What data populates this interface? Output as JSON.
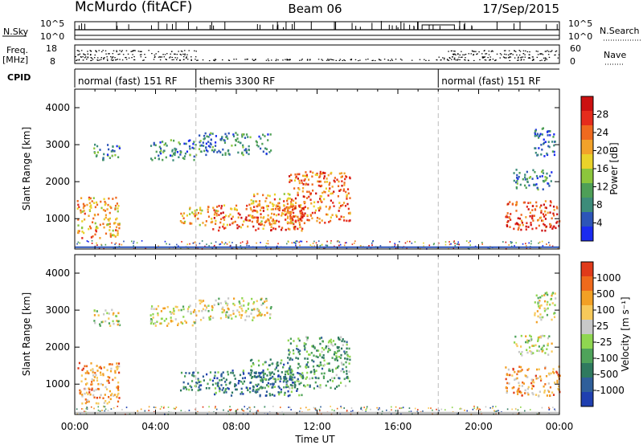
{
  "header": {
    "title": "McMurdo (fitACF)",
    "beam": "Beam 06",
    "date": "17/Sep/2015"
  },
  "status": {
    "nsky_label": "N.Sky",
    "nsky_ticks": [
      "10^5",
      "10^0"
    ],
    "nsearch_label": "N.Search",
    "freq_label_1": "Freq.",
    "freq_label_2": "[MHz]",
    "freq_ticks": [
      "18",
      "8"
    ],
    "nave_label": "Nave",
    "nave_ticks": [
      "60",
      "0"
    ],
    "cpid_label": "CPID",
    "cpid_segments": [
      {
        "label": "normal (fast) 151 RF",
        "start": 0,
        "end": 6
      },
      {
        "label": "themis 3300 RF",
        "start": 6,
        "end": 18
      },
      {
        "label": "normal (fast) 151 RF",
        "start": 18,
        "end": 24
      }
    ]
  },
  "chart_data": [
    {
      "type": "heatmap",
      "name": "power",
      "ylabel": "Slant Range [km]",
      "xlim": [
        0,
        24
      ],
      "ylim": [
        180,
        4500
      ],
      "yticks": [
        "1000",
        "2000",
        "3000",
        "4000"
      ],
      "colorbar": {
        "label": "Power [dB]",
        "ticks": [
          "4",
          "8",
          "12",
          "16",
          "20",
          "24",
          "28"
        ],
        "colors": [
          "#1a2bf0",
          "#2d55b8",
          "#3d8c7a",
          "#4e9f57",
          "#8cc63c",
          "#e9d22a",
          "#f2a22a",
          "#ef6a1f",
          "#e52c1c",
          "#cc1010"
        ]
      },
      "echo_regions": [
        {
          "t0": 0.1,
          "t1": 2.2,
          "r0": 500,
          "r1": 1600,
          "level": 6
        },
        {
          "t0": 0.9,
          "t1": 2.2,
          "r0": 2600,
          "r1": 3050,
          "level": 2
        },
        {
          "t0": 3.7,
          "t1": 6.0,
          "r0": 2600,
          "r1": 3150,
          "level": 2
        },
        {
          "t0": 5.2,
          "t1": 7.0,
          "r0": 850,
          "r1": 1350,
          "level": 6
        },
        {
          "t0": 6.8,
          "t1": 11.3,
          "r0": 700,
          "r1": 1400,
          "level": 7
        },
        {
          "t0": 8.6,
          "t1": 10.8,
          "r0": 900,
          "r1": 1700,
          "level": 6
        },
        {
          "t0": 10.5,
          "t1": 13.6,
          "r0": 900,
          "r1": 2300,
          "level": 7
        },
        {
          "t0": 6.1,
          "t1": 9.7,
          "r0": 2750,
          "r1": 3350,
          "level": 2
        },
        {
          "t0": 21.3,
          "t1": 24.0,
          "r0": 700,
          "r1": 1500,
          "level": 8
        },
        {
          "t0": 21.7,
          "t1": 23.6,
          "r0": 1800,
          "r1": 2350,
          "level": 2
        },
        {
          "t0": 22.7,
          "t1": 23.8,
          "r0": 2700,
          "r1": 3500,
          "level": 1
        }
      ]
    },
    {
      "type": "heatmap",
      "name": "velocity",
      "ylabel": "Slant Range [km]",
      "xlabel": "Time UT",
      "xlim": [
        0,
        24
      ],
      "ylim": [
        180,
        4500
      ],
      "xticks": [
        "00:00",
        "04:00",
        "08:00",
        "12:00",
        "16:00",
        "20:00",
        "00:00"
      ],
      "yticks": [
        "1000",
        "2000",
        "3000",
        "4000"
      ],
      "colorbar": {
        "label": "Velocity [m s⁻¹]",
        "ticks": [
          "1000",
          "500",
          "100",
          "25",
          "-25",
          "-100",
          "-500",
          "-1000"
        ],
        "colors": [
          "#1f3fb0",
          "#2f5f9a",
          "#2f7a5f",
          "#4fa35a",
          "#8fd650",
          "#c8c8c8",
          "#f7c95a",
          "#f2a024",
          "#ef6a1c",
          "#e03a1a"
        ]
      },
      "echo_regions": [
        {
          "t0": 0.1,
          "t1": 2.2,
          "r0": 500,
          "r1": 1600,
          "level": 7
        },
        {
          "t0": 0.9,
          "t1": 2.2,
          "r0": 2600,
          "r1": 3050,
          "level": 5
        },
        {
          "t0": 3.7,
          "t1": 6.0,
          "r0": 2600,
          "r1": 3150,
          "level": 5
        },
        {
          "t0": 5.2,
          "t1": 7.0,
          "r0": 850,
          "r1": 1350,
          "level": 2
        },
        {
          "t0": 6.8,
          "t1": 11.3,
          "r0": 700,
          "r1": 1400,
          "level": 2
        },
        {
          "t0": 8.6,
          "t1": 10.8,
          "r0": 900,
          "r1": 1700,
          "level": 2
        },
        {
          "t0": 10.5,
          "t1": 13.6,
          "r0": 900,
          "r1": 2300,
          "level": 3
        },
        {
          "t0": 6.1,
          "t1": 9.7,
          "r0": 2750,
          "r1": 3350,
          "level": 5
        },
        {
          "t0": 21.3,
          "t1": 24.0,
          "r0": 700,
          "r1": 1500,
          "level": 7
        },
        {
          "t0": 21.7,
          "t1": 23.6,
          "r0": 1800,
          "r1": 2350,
          "level": 5
        },
        {
          "t0": 22.7,
          "t1": 23.8,
          "r0": 2700,
          "r1": 3500,
          "level": 5
        }
      ]
    }
  ]
}
